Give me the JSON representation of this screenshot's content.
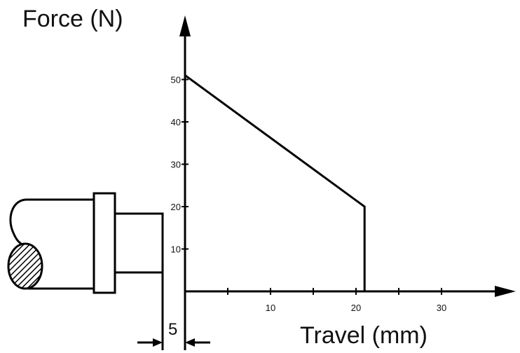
{
  "chart_data": {
    "type": "line",
    "ylabel": "Force (N)",
    "xlabel": "Travel (mm)",
    "x_ticks": [
      10,
      20,
      30
    ],
    "y_ticks": [
      10,
      20,
      30,
      40,
      50
    ],
    "xlim": [
      0,
      38
    ],
    "ylim": [
      0,
      64
    ],
    "series": [
      {
        "x": [
          0,
          21,
          21
        ],
        "y": [
          51,
          20,
          0
        ]
      }
    ],
    "grid": false
  },
  "illustration": {
    "dimension_label": "5"
  }
}
